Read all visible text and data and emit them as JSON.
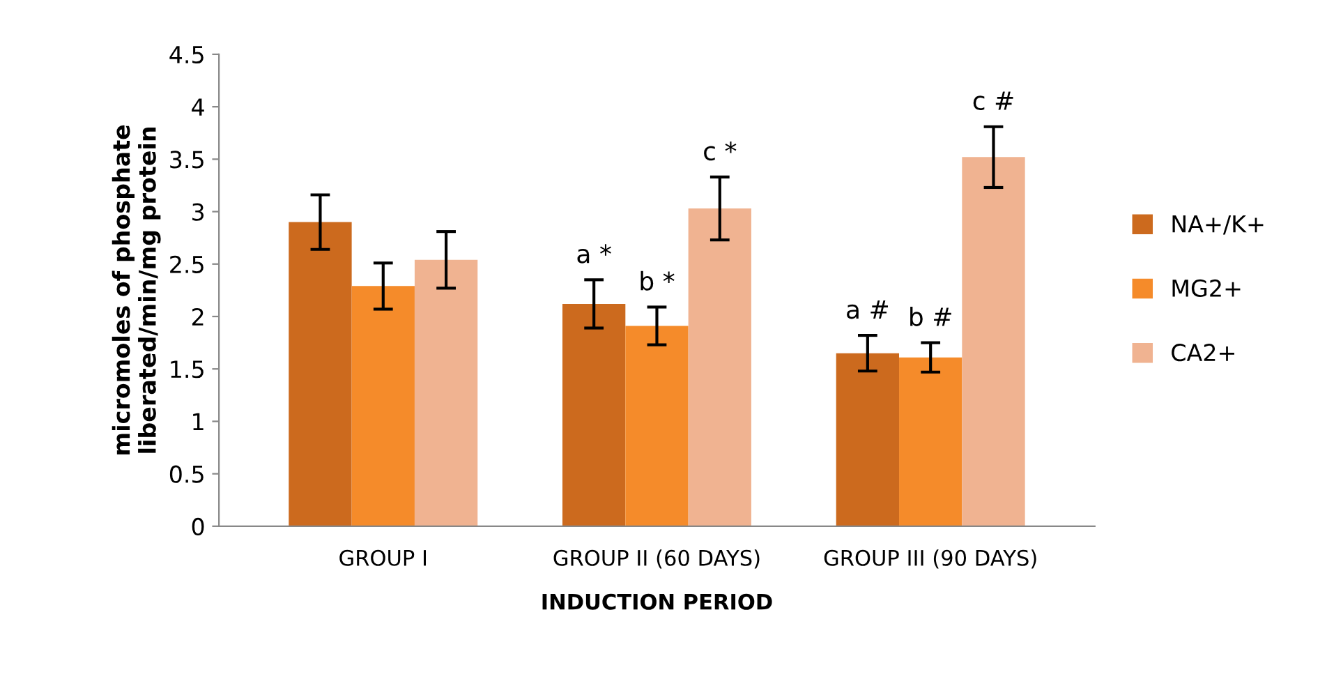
{
  "chart_data": {
    "type": "bar",
    "xlabel": "INDUCTION PERIOD",
    "ylabel": "micromoles of phosphate\nliberated/min/mg protein",
    "categories": [
      "GROUP I",
      "GROUP II (60 DAYS)",
      "GROUP III (90 DAYS)"
    ],
    "series": [
      {
        "name": "NA+/K+",
        "color": "#cc6a1e",
        "values": [
          2.9,
          2.12,
          1.65
        ],
        "errors": [
          0.26,
          0.23,
          0.17
        ]
      },
      {
        "name": "MG2+",
        "color": "#f58b2a",
        "values": [
          2.29,
          1.91,
          1.61
        ],
        "errors": [
          0.22,
          0.18,
          0.14
        ]
      },
      {
        "name": "CA2+",
        "color": "#f0b391",
        "values": [
          2.54,
          3.03,
          3.52
        ],
        "errors": [
          0.27,
          0.3,
          0.29
        ]
      }
    ],
    "ylim": [
      0,
      4.5
    ],
    "yticks": [
      0,
      0.5,
      1,
      1.5,
      2,
      2.5,
      3,
      3.5,
      4,
      4.5
    ],
    "annotations": [
      "a *",
      "b *",
      "c *",
      "a #",
      "b #",
      "c #"
    ],
    "legend": "right",
    "grid": false
  }
}
